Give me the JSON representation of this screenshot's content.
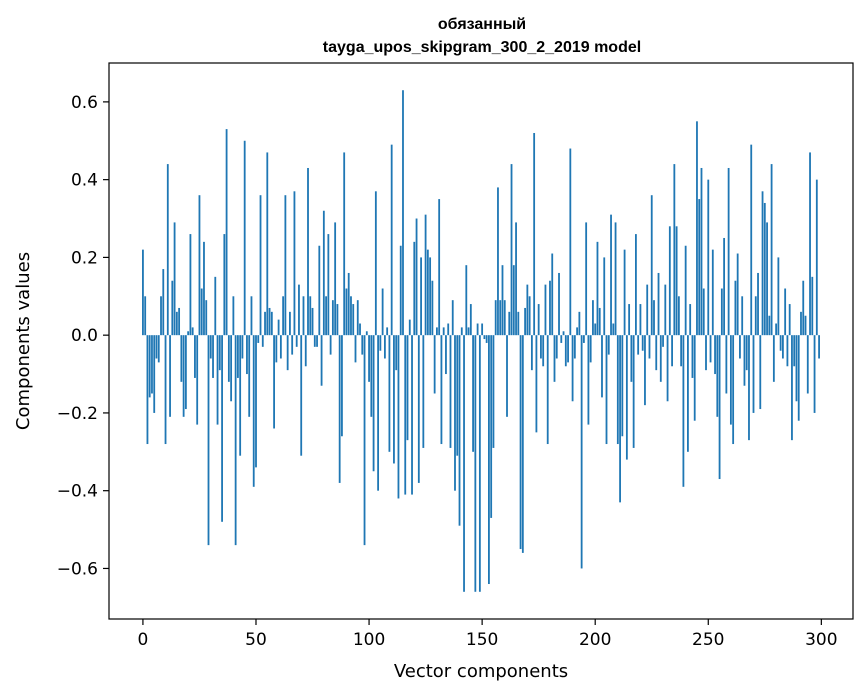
{
  "chart_data": {
    "type": "bar",
    "title": "обязанный",
    "subtitle": "tayga_upos_skipgram_300_2_2019 model",
    "xlabel": "Vector components",
    "ylabel": "Components values",
    "xlim": [
      -15,
      314
    ],
    "ylim": [
      -0.73,
      0.7
    ],
    "xticks": [
      0,
      50,
      100,
      150,
      200,
      250,
      300
    ],
    "xtick_labels": [
      "0",
      "50",
      "100",
      "150",
      "200",
      "250",
      "300"
    ],
    "yticks": [
      -0.6,
      -0.4,
      -0.2,
      0.0,
      0.2,
      0.4,
      0.6
    ],
    "ytick_labels": [
      "−0.6",
      "−0.4",
      "−0.2",
      "0.0",
      "0.2",
      "0.4",
      "0.6"
    ],
    "grid": false,
    "bar_color": "#1f77b4",
    "x": "0..299",
    "values": [
      0.22,
      0.1,
      -0.28,
      -0.16,
      -0.15,
      -0.2,
      -0.06,
      -0.07,
      0.1,
      0.17,
      -0.28,
      0.44,
      -0.21,
      0.14,
      0.29,
      0.06,
      0.07,
      -0.12,
      -0.21,
      -0.19,
      0.01,
      0.26,
      0.02,
      -0.11,
      -0.23,
      0.36,
      0.12,
      0.24,
      0.09,
      -0.54,
      -0.06,
      -0.11,
      0.15,
      -0.23,
      -0.09,
      -0.48,
      0.26,
      0.53,
      -0.12,
      -0.17,
      0.1,
      -0.54,
      -0.11,
      -0.31,
      -0.06,
      0.5,
      -0.1,
      -0.21,
      0.1,
      -0.39,
      -0.34,
      -0.02,
      0.36,
      -0.03,
      0.06,
      0.47,
      0.07,
      0.06,
      -0.24,
      -0.07,
      0.04,
      -0.06,
      0.1,
      0.36,
      -0.09,
      0.06,
      -0.05,
      0.37,
      -0.03,
      0.13,
      -0.31,
      0.1,
      -0.08,
      0.43,
      0.1,
      0.07,
      -0.03,
      -0.03,
      0.23,
      -0.13,
      0.32,
      0.1,
      0.26,
      -0.05,
      0.09,
      0.29,
      0.08,
      -0.38,
      -0.26,
      0.47,
      0.12,
      0.16,
      0.1,
      0.08,
      -0.07,
      0.09,
      0.03,
      -0.05,
      -0.54,
      0.01,
      -0.12,
      -0.21,
      -0.35,
      0.37,
      -0.4,
      -0.04,
      0.12,
      -0.06,
      0.02,
      -0.3,
      0.49,
      -0.33,
      -0.09,
      -0.42,
      0.23,
      0.63,
      -0.41,
      -0.27,
      0.04,
      -0.41,
      0.24,
      0.3,
      -0.38,
      0.2,
      -0.29,
      0.31,
      0.22,
      0.2,
      0.14,
      -0.15,
      0.02,
      0.35,
      -0.28,
      0.02,
      -0.1,
      0.03,
      -0.29,
      0.09,
      -0.4,
      -0.31,
      -0.49,
      0.02,
      -0.66,
      0.18,
      0.02,
      0.08,
      -0.3,
      -0.66,
      0.03,
      -0.66,
      0.03,
      -0.01,
      -0.02,
      -0.64,
      -0.47,
      -0.29,
      0.09,
      0.38,
      0.09,
      0.18,
      0.09,
      -0.21,
      0.06,
      0.44,
      0.18,
      0.29,
      0.06,
      -0.55,
      -0.56,
      0.07,
      0.13,
      0.1,
      -0.09,
      0.52,
      -0.25,
      0.08,
      -0.06,
      -0.08,
      0.13,
      -0.28,
      0.14,
      0.21,
      -0.12,
      -0.06,
      0.16,
      -0.02,
      0.01,
      -0.08,
      -0.07,
      0.48,
      -0.17,
      -0.06,
      0.02,
      0.06,
      -0.6,
      -0.02,
      0.29,
      -0.23,
      -0.07,
      0.09,
      0.03,
      0.24,
      0.07,
      -0.16,
      0.2,
      -0.28,
      -0.05,
      0.31,
      0.03,
      0.29,
      -0.28,
      -0.43,
      -0.26,
      0.22,
      -0.32,
      0.08,
      -0.12,
      -0.29,
      0.26,
      -0.05,
      0.08,
      -0.04,
      -0.18,
      0.13,
      -0.06,
      0.36,
      0.09,
      -0.09,
      0.16,
      -0.12,
      -0.03,
      0.13,
      -0.17,
      0.28,
      -0.08,
      0.44,
      0.28,
      0.1,
      -0.08,
      -0.39,
      0.23,
      -0.3,
      0.08,
      -0.11,
      -0.22,
      0.55,
      0.35,
      0.43,
      0.12,
      -0.09,
      0.4,
      -0.07,
      0.22,
      -0.1,
      -0.21,
      -0.37,
      0.12,
      0.25,
      -0.15,
      0.43,
      -0.23,
      -0.28,
      0.14,
      0.21,
      -0.06,
      0.1,
      -0.13,
      -0.09,
      -0.27,
      0.49,
      -0.2,
      0.1,
      0.16,
      -0.19,
      0.37,
      0.34,
      0.29,
      0.05,
      0.44,
      -0.12,
      0.03,
      0.2,
      -0.04,
      -0.06,
      0.12,
      -0.08,
      0.08,
      -0.27,
      -0.08,
      -0.17,
      -0.22,
      0.06,
      0.14,
      0.05,
      -0.15,
      0.47,
      0.15,
      -0.2,
      0.4,
      -0.06
    ]
  }
}
